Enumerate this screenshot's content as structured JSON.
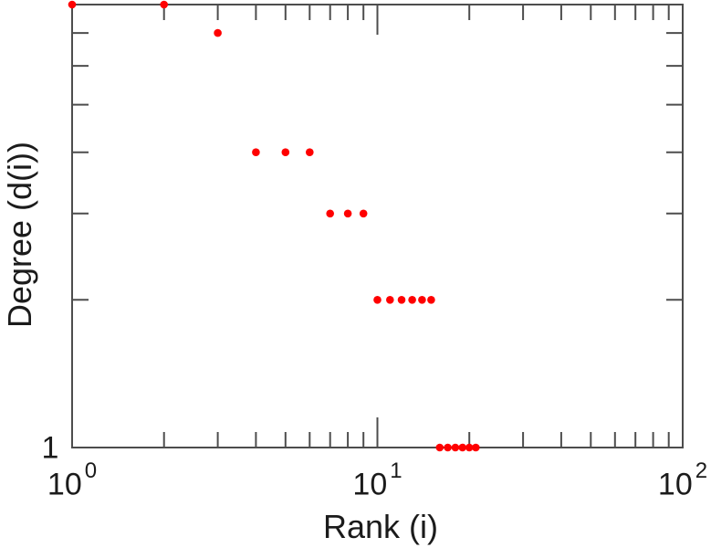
{
  "figure": {
    "background": "#ffffff"
  },
  "chart_data": {
    "type": "scatter",
    "title": "",
    "xlabel": "Rank (i)",
    "ylabel": "Degree (d(i))",
    "xscale": "log",
    "yscale": "log",
    "xlim": [
      1,
      100
    ],
    "ylim": [
      1,
      8
    ],
    "grid": false,
    "legend": null,
    "x": [
      1,
      2,
      3,
      4,
      5,
      6,
      7,
      8,
      9,
      10,
      11,
      12,
      13,
      14,
      15,
      16,
      17,
      18,
      19,
      20,
      21
    ],
    "y": [
      8,
      8,
      7,
      4,
      4,
      4,
      3,
      3,
      3,
      2,
      2,
      2,
      2,
      2,
      2,
      1,
      1,
      1,
      1,
      1,
      1
    ],
    "x_major_ticks": [
      1,
      10,
      100
    ],
    "x_minor_ticks": [
      2,
      3,
      4,
      5,
      6,
      7,
      8,
      9,
      20,
      30,
      40,
      50,
      60,
      70,
      80,
      90
    ],
    "y_major_ticks": [
      1
    ],
    "y_minor_ticks": [
      2,
      3,
      4,
      5,
      6,
      7
    ],
    "x_tick_labels": [
      {
        "base": "10",
        "exp": "0"
      },
      {
        "base": "10",
        "exp": "1"
      },
      {
        "base": "10",
        "exp": "2"
      }
    ],
    "y_tick_labels": [
      "1"
    ],
    "marker_color": "#ff0000",
    "axis_color": "#4d4d4d",
    "text_color": "#1b1b1b"
  }
}
